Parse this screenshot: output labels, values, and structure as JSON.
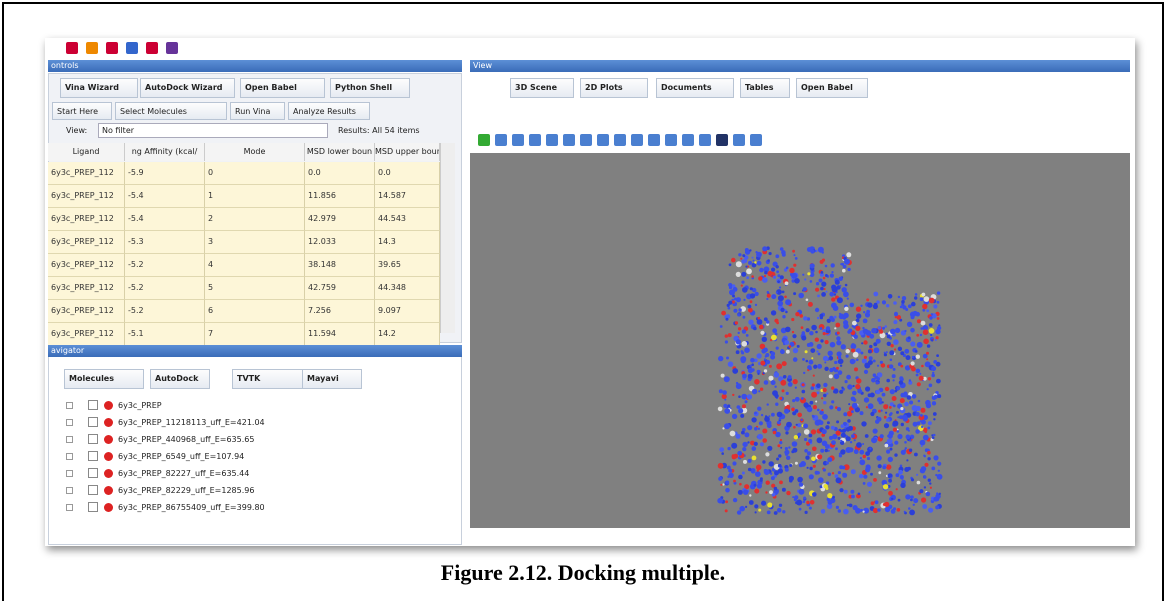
{
  "header": {
    "controls": "ontrols",
    "view": "View",
    "navigator": "avigator"
  },
  "left_tabs": [
    "Vina Wizard",
    "AutoDock Wizard",
    "Open Babel",
    "Python Shell"
  ],
  "sub_tabs": [
    "Start Here",
    "Select Molecules",
    "Run Vina",
    "Analyze Results"
  ],
  "filter": {
    "label": "View:",
    "value": "No filter",
    "results": "Results: All 54 items"
  },
  "table": {
    "columns": [
      "Ligand",
      "ng Affinity (kcal/",
      "Mode",
      "MSD lower boun",
      "MSD upper boun"
    ],
    "rows": [
      [
        "6y3c_PREP_112",
        "-5.9",
        "0",
        "0.0",
        "0.0"
      ],
      [
        "6y3c_PREP_112",
        "-5.4",
        "1",
        "11.856",
        "14.587"
      ],
      [
        "6y3c_PREP_112",
        "-5.4",
        "2",
        "42.979",
        "44.543"
      ],
      [
        "6y3c_PREP_112",
        "-5.3",
        "3",
        "12.033",
        "14.3"
      ],
      [
        "6y3c_PREP_112",
        "-5.2",
        "4",
        "38.148",
        "39.65"
      ],
      [
        "6y3c_PREP_112",
        "-5.2",
        "5",
        "42.759",
        "44.348"
      ],
      [
        "6y3c_PREP_112",
        "-5.2",
        "6",
        "7.256",
        "9.097"
      ],
      [
        "6y3c_PREP_112",
        "-5.1",
        "7",
        "11.594",
        "14.2"
      ]
    ]
  },
  "nav_tabs": [
    "Molecules",
    "AutoDock",
    "TVTK",
    "Mayavi"
  ],
  "molecules": [
    "6y3c_PREP",
    "6y3c_PREP_11218113_uff_E=421.04",
    "6y3c_PREP_440968_uff_E=635.65",
    "6y3c_PREP_6549_uff_E=107.94",
    "6y3c_PREP_82227_uff_E=635.44",
    "6y3c_PREP_82229_uff_E=1285.96",
    "6y3c_PREP_86755409_uff_E=399.80"
  ],
  "view_tabs": [
    "3D Scene",
    "2D Plots",
    "Documents",
    "Tables",
    "Open Babel"
  ],
  "caption": "Figure 2.12. Docking multiple."
}
